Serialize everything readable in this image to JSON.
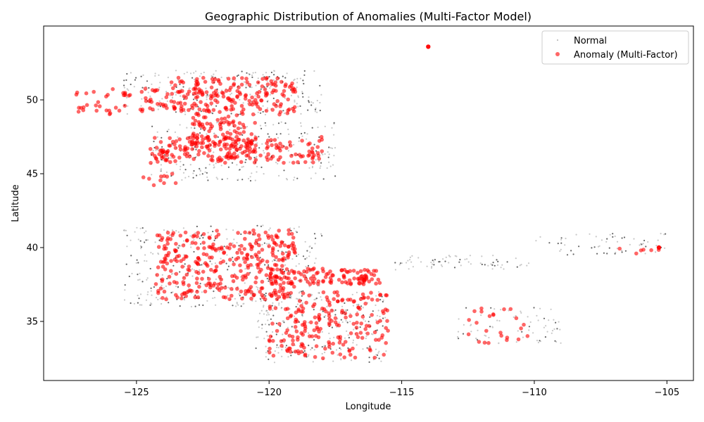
{
  "chart_data": {
    "type": "scatter",
    "title": "Geographic Distribution of Anomalies (Multi-Factor Model)",
    "xlabel": "Longitude",
    "ylabel": "Latitude",
    "xlim": [
      -128.5,
      -104
    ],
    "ylim": [
      31,
      55
    ],
    "x_ticks": [
      -125,
      -120,
      -115,
      -110,
      -105
    ],
    "y_ticks": [
      35,
      40,
      45,
      50
    ],
    "grid": false,
    "legend_position": "top-right",
    "colors": {
      "normal": "#808080",
      "anomaly": "#ff0000"
    },
    "series": [
      {
        "name": "Normal",
        "marker": "small-dot",
        "clusters": [
          {
            "x": [
              -125.5,
              -118
            ],
            "y": [
              49,
              52
            ],
            "n": 260
          },
          {
            "x": [
              -124.5,
              -117.5
            ],
            "y": [
              44.5,
              48.5
            ],
            "n": 260
          },
          {
            "x": [
              -125.5,
              -118
            ],
            "y": [
              36,
              41.5
            ],
            "n": 380
          },
          {
            "x": [
              -120.5,
              -115.5
            ],
            "y": [
              32.2,
              37
            ],
            "n": 260
          },
          {
            "x": [
              -115.5,
              -110
            ],
            "y": [
              38.5,
              39.5
            ],
            "n": 70
          },
          {
            "x": [
              -110,
              -105
            ],
            "y": [
              39.5,
              41
            ],
            "n": 60
          },
          {
            "x": [
              -113,
              -109
            ],
            "y": [
              33.5,
              36
            ],
            "n": 70
          }
        ]
      },
      {
        "name": "Anomaly (Multi-Factor)",
        "marker": "dot",
        "clusters": [
          {
            "x": [
              -127.3,
              -124
            ],
            "y": [
              49,
              50.8
            ],
            "n": 50
          },
          {
            "x": [
              -124,
              -119
            ],
            "y": [
              49,
              51.5
            ],
            "n": 200
          },
          {
            "x": [
              -123,
              -120.5
            ],
            "y": [
              46,
              49
            ],
            "n": 110
          },
          {
            "x": [
              -124.5,
              -118
            ],
            "y": [
              45.7,
              47.5
            ],
            "n": 180
          },
          {
            "x": [
              -124.8,
              -123.5
            ],
            "y": [
              44.2,
              45
            ],
            "n": 10
          },
          {
            "x": [
              -124.3,
              -119
            ],
            "y": [
              36.5,
              41.2
            ],
            "n": 320
          },
          {
            "x": [
              -120,
              -115.8
            ],
            "y": [
              37.5,
              38.6
            ],
            "n": 120
          },
          {
            "x": [
              -120,
              -115.5
            ],
            "y": [
              32.5,
              37
            ],
            "n": 200
          },
          {
            "x": [
              -112.5,
              -110
            ],
            "y": [
              33.5,
              36
            ],
            "n": 24
          },
          {
            "x": [
              -106.8,
              -105.3
            ],
            "y": [
              39.6,
              40
            ],
            "n": 6
          }
        ],
        "highlights": [
          {
            "x": -114,
            "y": 53.6
          },
          {
            "x": -105.3,
            "y": 40
          }
        ]
      }
    ]
  }
}
